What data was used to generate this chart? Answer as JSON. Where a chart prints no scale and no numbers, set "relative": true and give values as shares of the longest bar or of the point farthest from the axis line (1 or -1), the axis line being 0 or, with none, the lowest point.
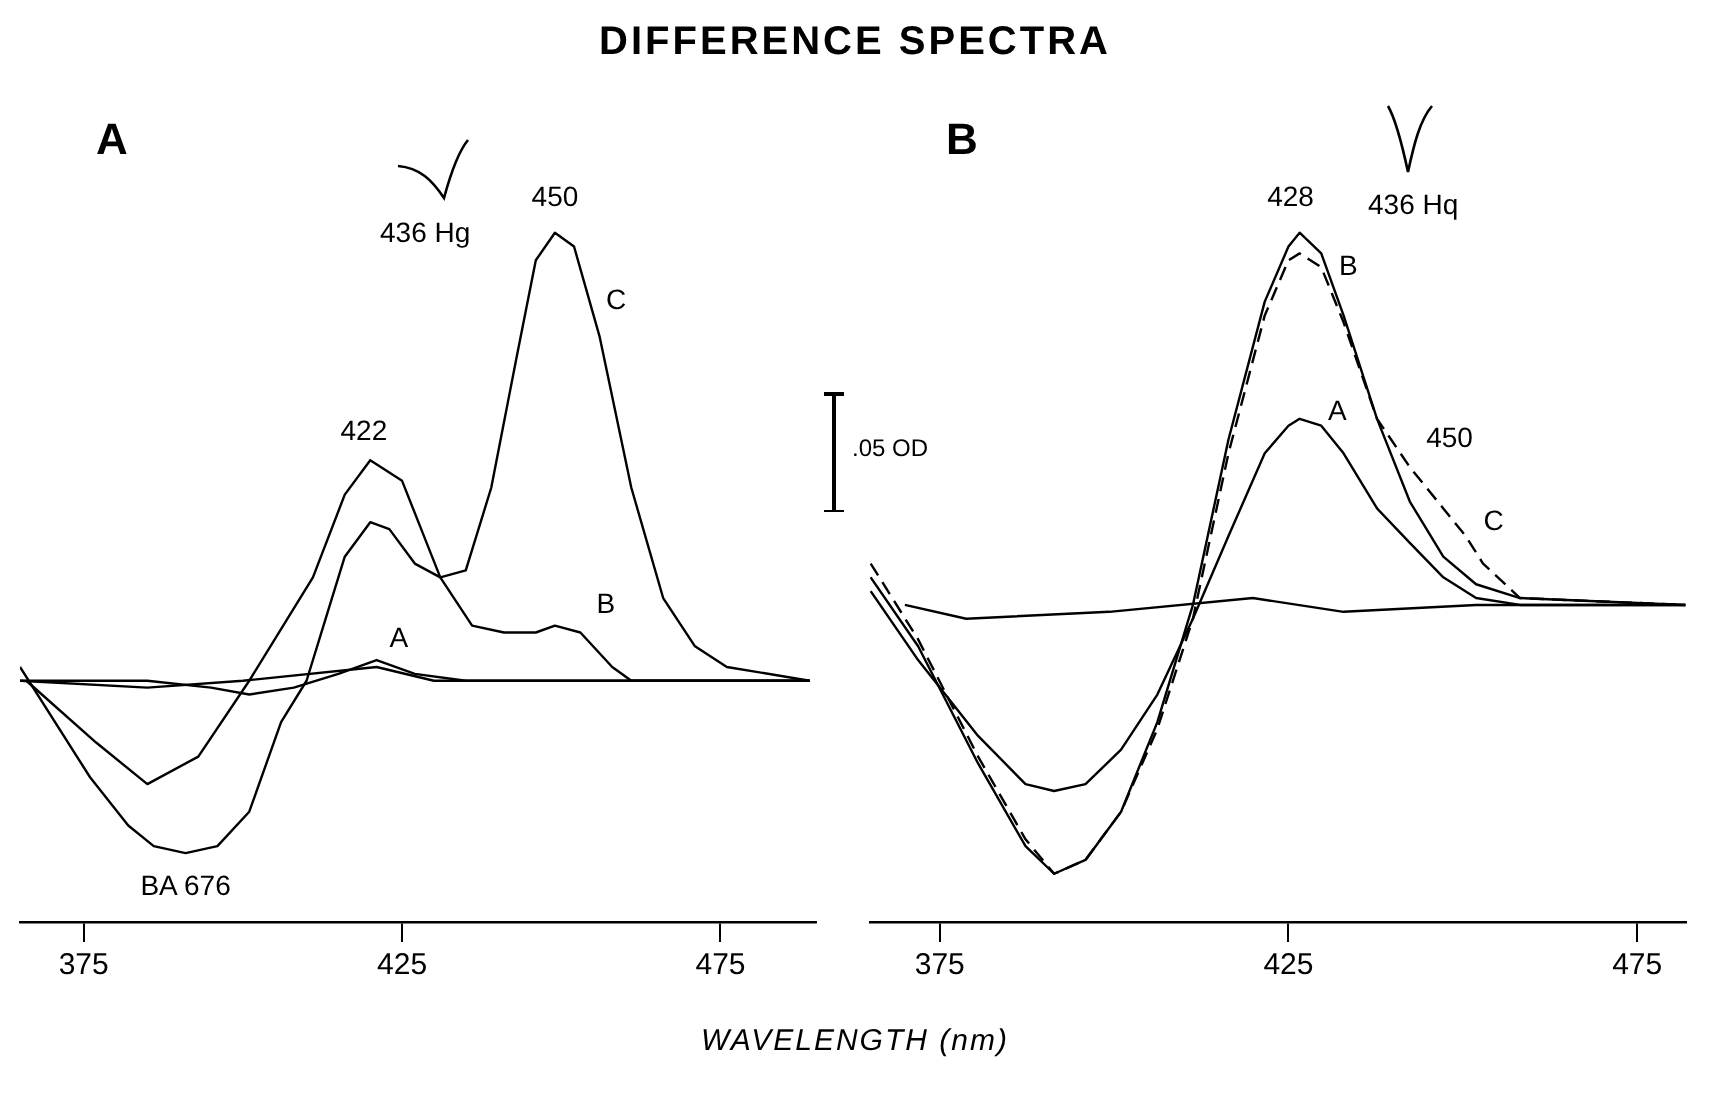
{
  "chart_data": [
    {
      "type": "line",
      "title": "A",
      "xlabel": "WAVELENGTH (nm)",
      "relative": true,
      "xlim": [
        365,
        490
      ],
      "xticks": [
        375,
        425,
        475
      ],
      "grid": false,
      "legend": false,
      "marker": "none",
      "line_style": "solid",
      "annotations": [
        "DIFFERENCE SPECTRA",
        "436 Hg",
        ".05 OD",
        "BA 676",
        "422",
        "450",
        "C",
        "B",
        "A"
      ],
      "series": [
        {
          "color": "#000000",
          "x": [
            365,
            376,
            382,
            386,
            391,
            396,
            401,
            406,
            410,
            413,
            416,
            420,
            423,
            427,
            431,
            435,
            439,
            443,
            446,
            449,
            452,
            456,
            461,
            466,
            471,
            476,
            489
          ],
          "values": [
            0.37,
            0.21,
            0.14,
            0.11,
            0.1,
            0.11,
            0.16,
            0.29,
            0.35,
            0.44,
            0.53,
            0.58,
            0.57,
            0.52,
            0.5,
            0.51,
            0.63,
            0.82,
            0.96,
            1,
            0.98,
            0.85,
            0.63,
            0.47,
            0.4,
            0.37,
            0.35
          ]
        },
        {
          "color": "#000000",
          "x": [
            366,
            377,
            385,
            393,
            401,
            411,
            416,
            420,
            425,
            428,
            431,
            436,
            441,
            446,
            449,
            453,
            458,
            461,
            489
          ],
          "values": [
            0.35,
            0.26,
            0.2,
            0.24,
            0.35,
            0.5,
            0.62,
            0.67,
            0.64,
            0.57,
            0.5,
            0.43,
            0.42,
            0.42,
            0.43,
            0.42,
            0.37,
            0.35,
            0.35
          ]
        },
        {
          "color": "#000000",
          "x": [
            365,
            385,
            395,
            401,
            408,
            415,
            421,
            427,
            435,
            489
          ],
          "values": [
            0.35,
            0.35,
            0.34,
            0.33,
            0.34,
            0.36,
            0.38,
            0.36,
            0.35,
            0.35
          ]
        },
        {
          "color": "#000000",
          "x": [
            365,
            385,
            400,
            421,
            430,
            489
          ],
          "values": [
            0.35,
            0.34,
            0.35,
            0.37,
            0.35,
            0.35
          ]
        }
      ]
    },
    {
      "type": "line",
      "title": "B",
      "relative": true,
      "xlim": [
        365,
        482
      ],
      "xticks": [
        375,
        425,
        475
      ],
      "grid": false,
      "legend": false,
      "marker": "none",
      "line_style": "solid",
      "annotations": [
        "436 Hq",
        "428",
        "B",
        "A",
        "450",
        "C"
      ],
      "series": [
        {
          "color": "#000000",
          "x": [
            365.1,
            371.9,
            380.5,
            387.3,
            391.4,
            395.9,
            401,
            406.2,
            411.3,
            416.4,
            421.6,
            425,
            426.6,
            429.7,
            432.9,
            437.7,
            442.4,
            447.2,
            451.9,
            458.2,
            481.9
          ],
          "values": [
            0.5,
            0.4,
            0.23,
            0.11,
            0.07,
            0.09,
            0.16,
            0.29,
            0.46,
            0.7,
            0.9,
            0.98,
            1,
            0.97,
            0.88,
            0.73,
            0.61,
            0.53,
            0.49,
            0.47,
            0.46
          ]
        },
        {
          "color": "#000000",
          "line_style": "dashed",
          "x": [
            365.1,
            371.9,
            380.5,
            387.3,
            391.4,
            395.9,
            401,
            406.2,
            411.3,
            416.4,
            421.6,
            425,
            426.6,
            429.7,
            432.9,
            437.7,
            442.4,
            447.2,
            450.4,
            452.9,
            458.2,
            481.9
          ],
          "values": [
            0.52,
            0.41,
            0.24,
            0.12,
            0.07,
            0.09,
            0.16,
            0.28,
            0.44,
            0.68,
            0.88,
            0.96,
            0.97,
            0.95,
            0.87,
            0.73,
            0.66,
            0.6,
            0.56,
            0.52,
            0.47,
            0.46
          ]
        },
        {
          "color": "#000000",
          "x": [
            365.1,
            371.9,
            380.5,
            387.3,
            391.4,
            395.9,
            401,
            406.2,
            411.3,
            416.4,
            421.6,
            425,
            426.6,
            429.7,
            432.9,
            437.7,
            442.4,
            447.2,
            451.9,
            458.2,
            481.9
          ],
          "values": [
            0.48,
            0.38,
            0.27,
            0.2,
            0.19,
            0.2,
            0.25,
            0.33,
            0.44,
            0.56,
            0.68,
            0.72,
            0.73,
            0.72,
            0.68,
            0.6,
            0.55,
            0.5,
            0.47,
            0.46,
            0.46
          ]
        },
        {
          "color": "#000000",
          "x": [
            370,
            378.8,
            399.3,
            419.9,
            432.9,
            451.9,
            481.9
          ],
          "values": [
            0.46,
            0.44,
            0.45,
            0.47,
            0.45,
            0.46,
            0.46
          ]
        }
      ]
    }
  ]
}
